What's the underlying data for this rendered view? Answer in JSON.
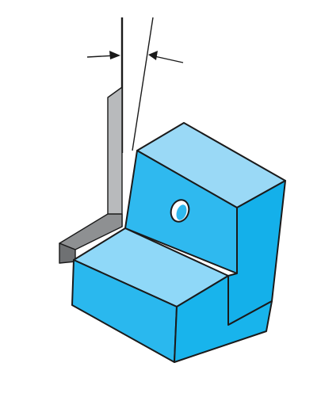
{
  "colors": {
    "block_top": "#8fd8f8",
    "block_left_front": "#2ab8ee",
    "block_right_front": "#18b4ec",
    "block_upper_face": "#2fb9ef",
    "block_top_upper": "#9ad9f6",
    "angle_plate_front": "#b8babc",
    "angle_plate_edge": "#7c7e80",
    "hole": "#ffffff",
    "outline": "#1a1a1a",
    "background": "#ffffff"
  }
}
